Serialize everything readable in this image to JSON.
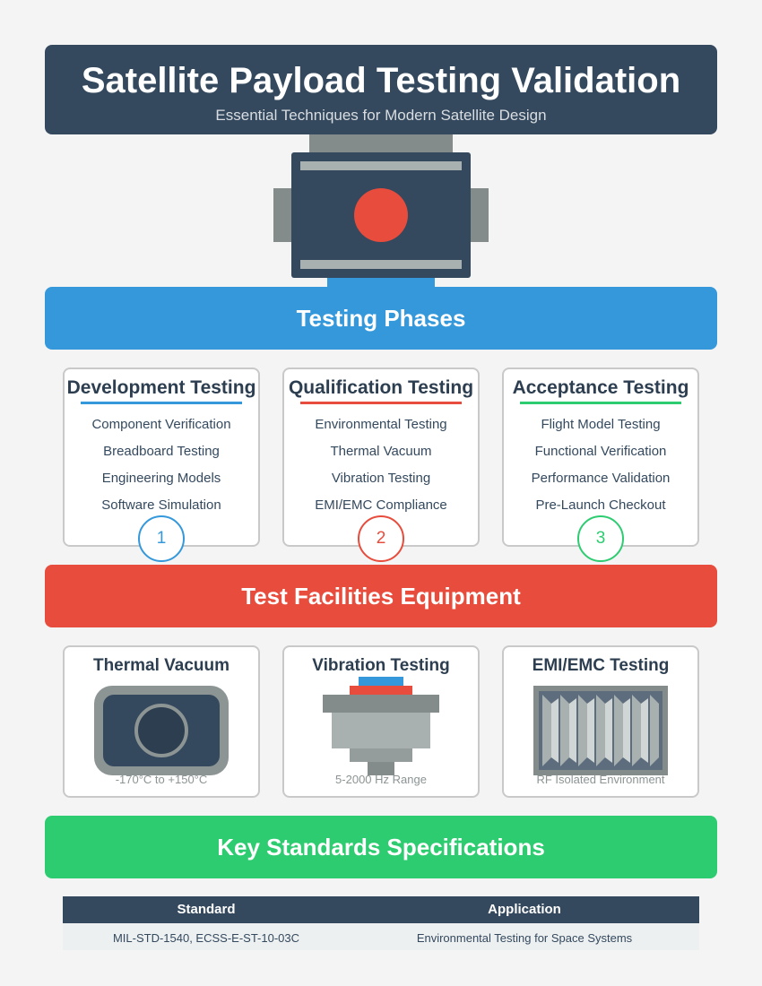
{
  "header": {
    "title": "Satellite Payload Testing Validation",
    "subtitle": "Essential Techniques for Modern Satellite Design"
  },
  "sections": {
    "phases": "Testing Phases",
    "facilities": "Test Facilities Equipment",
    "standards": "Key Standards Specifications"
  },
  "phases": [
    {
      "title": "Development Testing",
      "items": [
        "Component Verification",
        "Breadboard Testing",
        "Engineering Models",
        "Software Simulation"
      ],
      "number": "1"
    },
    {
      "title": "Qualification Testing",
      "items": [
        "Environmental Testing",
        "Thermal Vacuum",
        "Vibration Testing",
        "EMI/EMC Compliance"
      ],
      "number": "2"
    },
    {
      "title": "Acceptance Testing",
      "items": [
        "Flight Model Testing",
        "Functional Verification",
        "Performance Validation",
        "Pre-Launch Checkout"
      ],
      "number": "3"
    }
  ],
  "facilities": [
    {
      "title": "Thermal Vacuum",
      "note": "-170°C to +150°C",
      "icon": "thermal-vacuum-chamber-icon"
    },
    {
      "title": "Vibration Testing",
      "note": "5-2000 Hz Range",
      "icon": "vibration-shaker-icon"
    },
    {
      "title": "EMI/EMC Testing",
      "note": "RF Isolated Environment",
      "icon": "anechoic-chamber-icon"
    }
  ],
  "standards_table": {
    "headers": [
      "Standard",
      "Application"
    ],
    "rows": [
      [
        "MIL-STD-1540, ECSS-E-ST-10-03C",
        "Environmental Testing for Space Systems"
      ]
    ]
  },
  "colors": {
    "dark": "#34495e",
    "blue": "#3498db",
    "red": "#e74c3c",
    "green": "#2ecc71",
    "gray": "#838b8b"
  }
}
